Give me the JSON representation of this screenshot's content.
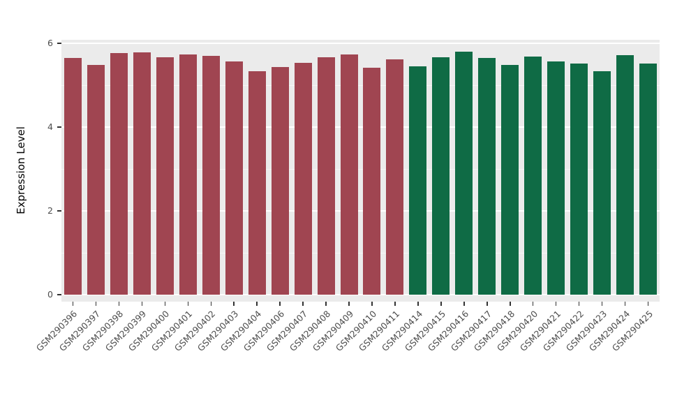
{
  "chart_data": {
    "type": "bar",
    "title": "",
    "xlabel": "",
    "ylabel": "Expression Level",
    "ylim": [
      0,
      6
    ],
    "yticks": [
      0,
      2,
      4,
      6
    ],
    "yticks_minor": [
      1,
      3,
      5
    ],
    "grid": true,
    "legend": "none",
    "categories": [
      "GSM290396",
      "GSM290397",
      "GSM290398",
      "GSM290399",
      "GSM290400",
      "GSM290401",
      "GSM290402",
      "GSM290403",
      "GSM290404",
      "GSM290406",
      "GSM290407",
      "GSM290408",
      "GSM290409",
      "GSM290410",
      "GSM290411",
      "GSM290414",
      "GSM290415",
      "GSM290416",
      "GSM290417",
      "GSM290418",
      "GSM290420",
      "GSM290421",
      "GSM290422",
      "GSM290423",
      "GSM290424",
      "GSM290425"
    ],
    "values": [
      5.65,
      5.48,
      5.76,
      5.78,
      5.66,
      5.73,
      5.7,
      5.56,
      5.34,
      5.44,
      5.54,
      5.66,
      5.73,
      5.41,
      5.62,
      5.45,
      5.67,
      5.8,
      5.65,
      5.49,
      5.68,
      5.57,
      5.51,
      5.33,
      5.71,
      5.51
    ],
    "group_of_bar": [
      "maroon",
      "maroon",
      "maroon",
      "maroon",
      "maroon",
      "maroon",
      "maroon",
      "maroon",
      "maroon",
      "maroon",
      "maroon",
      "maroon",
      "maroon",
      "maroon",
      "maroon",
      "green",
      "green",
      "green",
      "green",
      "green",
      "green",
      "green",
      "green",
      "green",
      "green",
      "green"
    ],
    "group_colors": {
      "maroon": "#A04551",
      "green": "#0F6B45"
    },
    "style": {
      "plot_bg": "#EBEBEB",
      "grid_major": "#FFFFFF",
      "grid_minor": "rgba(255,255,255,0.55)",
      "axis_text": "#4d4d4d"
    }
  }
}
